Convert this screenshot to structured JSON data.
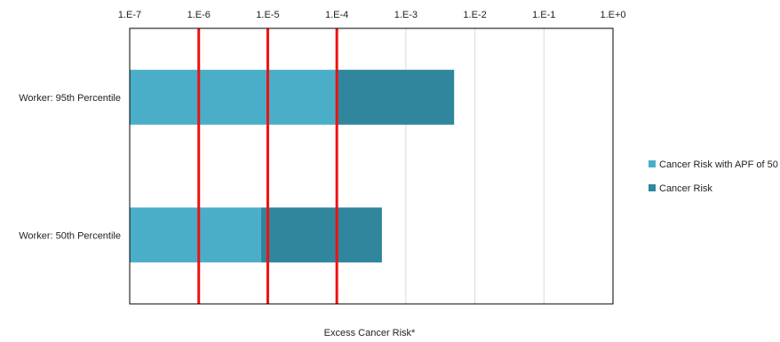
{
  "chart_data": {
    "type": "bar",
    "orientation": "horizontal",
    "stacked": true,
    "x_scale": "log",
    "xlim": [
      1e-07,
      1
    ],
    "x_ticks": [
      {
        "value": 1e-07,
        "label": "1.E-7"
      },
      {
        "value": 1e-06,
        "label": "1.E-6"
      },
      {
        "value": 1e-05,
        "label": "1.E-5"
      },
      {
        "value": 0.0001,
        "label": "1.E-4"
      },
      {
        "value": 0.001,
        "label": "1.E-3"
      },
      {
        "value": 0.01,
        "label": "1.E-2"
      },
      {
        "value": 0.1,
        "label": "1.E-1"
      },
      {
        "value": 1,
        "label": "1.E+0"
      }
    ],
    "x_axis_position": "top",
    "xlabel": "Excess Cancer Risk*",
    "ylabel": "",
    "grid": true,
    "categories": [
      "Worker: 95th Percentile",
      "Worker: 50th Percentile"
    ],
    "series": [
      {
        "name": "Cancer Risk with APF of 50",
        "color": "#4aaec9",
        "values": [
          0.0001,
          8e-06
        ]
      },
      {
        "name": "Cancer Risk",
        "color": "#30869c",
        "values": [
          0.005,
          0.00045
        ]
      }
    ],
    "reference_lines": {
      "color": "#ee1111",
      "x_values": [
        1e-06,
        1e-05,
        0.0001
      ]
    },
    "legend_position": "right"
  }
}
